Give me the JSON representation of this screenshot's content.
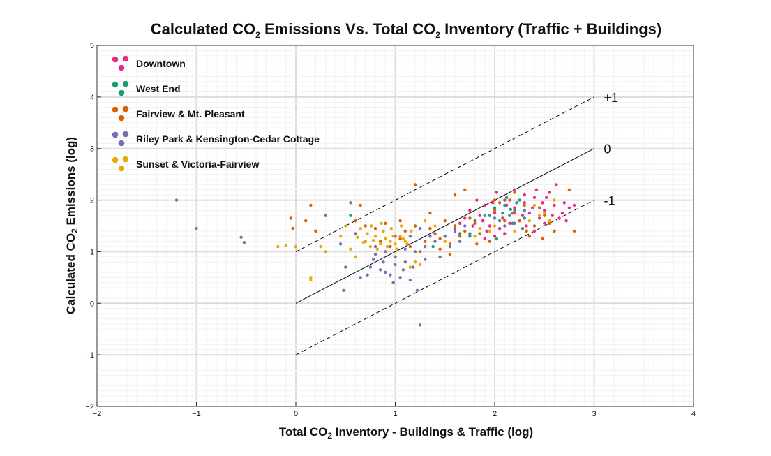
{
  "chart_data": {
    "type": "scatter",
    "title": {
      "part1": "Calculated CO",
      "sub1": "2",
      "part2": " Emissions Vs. Total CO",
      "sub2": "2",
      "part3": " Inventory (Traffic + Buildings)"
    },
    "xlabel": {
      "part1": "Total CO",
      "sub": "2",
      "part2": " Inventory - Buildings & Traffic (log)"
    },
    "ylabel": {
      "part1": "Calculated CO",
      "sub": "2",
      "part2": " Emissions (log)"
    },
    "xlim": [
      -2,
      4
    ],
    "ylim": [
      -2,
      5
    ],
    "x_ticks": [
      -2,
      -1,
      0,
      1,
      2,
      3,
      4
    ],
    "y_ticks": [
      -2,
      -1,
      0,
      1,
      2,
      3,
      4,
      5
    ],
    "x_tick_labels": [
      "−2",
      "−1",
      "0",
      "1",
      "2",
      "3",
      "4"
    ],
    "y_tick_labels": [
      "−2",
      "−1",
      "0",
      "1",
      "2",
      "3",
      "4",
      "5"
    ],
    "grid": true,
    "legend_position": "top-left",
    "reference_lines": [
      {
        "label": "+1",
        "offset": 1,
        "style": "dashed",
        "x": [
          0,
          3
        ],
        "y": [
          1,
          4
        ]
      },
      {
        "label": "0",
        "offset": 0,
        "style": "solid",
        "x": [
          0,
          3
        ],
        "y": [
          0,
          3
        ]
      },
      {
        "label": "-1",
        "offset": -1,
        "style": "dashed",
        "x": [
          0,
          3
        ],
        "y": [
          -1,
          2
        ]
      }
    ],
    "series": [
      {
        "name": "Downtown",
        "color": "#e7298a",
        "points": [
          [
            1.9,
            1.9
          ],
          [
            2.0,
            1.75
          ],
          [
            2.1,
            2.0
          ],
          [
            2.2,
            1.85
          ],
          [
            2.3,
            1.95
          ],
          [
            2.4,
            2.05
          ],
          [
            2.5,
            1.8
          ],
          [
            2.6,
            1.9
          ],
          [
            2.7,
            1.95
          ],
          [
            2.8,
            1.9
          ],
          [
            2.55,
            2.15
          ],
          [
            2.45,
            1.65
          ],
          [
            2.35,
            1.75
          ],
          [
            2.25,
            1.6
          ],
          [
            2.15,
            1.55
          ],
          [
            2.05,
            1.45
          ],
          [
            1.95,
            1.5
          ],
          [
            1.85,
            1.7
          ],
          [
            1.75,
            1.8
          ],
          [
            1.65,
            1.55
          ],
          [
            2.62,
            2.3
          ],
          [
            2.68,
            1.75
          ],
          [
            2.75,
            1.85
          ],
          [
            2.5,
            1.55
          ],
          [
            2.4,
            1.4
          ],
          [
            2.3,
            2.1
          ],
          [
            2.2,
            2.2
          ],
          [
            2.1,
            1.35
          ],
          [
            2.0,
            1.3
          ],
          [
            1.9,
            1.25
          ],
          [
            2.65,
            1.65
          ],
          [
            2.58,
            1.7
          ],
          [
            2.48,
            1.95
          ],
          [
            2.38,
            1.85
          ],
          [
            2.28,
            1.7
          ],
          [
            2.18,
            1.75
          ],
          [
            2.08,
            1.65
          ],
          [
            1.98,
            1.95
          ],
          [
            1.88,
            1.6
          ],
          [
            1.78,
            1.5
          ],
          [
            1.7,
            1.65
          ],
          [
            1.6,
            1.45
          ],
          [
            2.72,
            1.6
          ],
          [
            2.52,
            2.05
          ],
          [
            2.42,
            2.2
          ],
          [
            2.32,
            1.5
          ],
          [
            2.12,
            1.9
          ],
          [
            2.02,
            2.15
          ],
          [
            1.92,
            1.4
          ],
          [
            1.82,
            2.0
          ]
        ]
      },
      {
        "name": "West End",
        "color": "#1b9e77",
        "points": [
          [
            2.1,
            1.9
          ],
          [
            2.15,
            1.7
          ],
          [
            2.2,
            1.8
          ],
          [
            2.25,
            2.0
          ],
          [
            2.05,
            1.6
          ],
          [
            2.0,
            1.85
          ],
          [
            2.3,
            1.65
          ],
          [
            2.18,
            1.55
          ],
          [
            1.95,
            1.7
          ],
          [
            2.12,
            2.05
          ],
          [
            2.22,
            1.95
          ],
          [
            2.08,
            1.75
          ],
          [
            1.5,
            1.3
          ],
          [
            1.75,
            1.3
          ],
          [
            1.65,
            1.35
          ],
          [
            0.55,
            1.7
          ],
          [
            2.28,
            1.45
          ],
          [
            1.38,
            1.1
          ],
          [
            2.02,
            1.25
          ],
          [
            2.16,
            1.82
          ]
        ]
      },
      {
        "name": "Fairview & Mt. Pleasant",
        "color": "#d95f02",
        "points": [
          [
            1.0,
            1.3
          ],
          [
            1.1,
            1.4
          ],
          [
            1.2,
            1.5
          ],
          [
            1.3,
            1.2
          ],
          [
            1.4,
            1.35
          ],
          [
            1.5,
            1.6
          ],
          [
            1.6,
            1.5
          ],
          [
            1.7,
            1.4
          ],
          [
            1.8,
            1.55
          ],
          [
            1.9,
            1.7
          ],
          [
            2.0,
            1.8
          ],
          [
            2.1,
            1.6
          ],
          [
            2.2,
            1.75
          ],
          [
            2.3,
            1.9
          ],
          [
            2.4,
            1.5
          ],
          [
            2.5,
            1.7
          ],
          [
            2.6,
            1.4
          ],
          [
            2.8,
            1.4
          ],
          [
            2.75,
            2.2
          ],
          [
            1.2,
            2.3
          ],
          [
            0.6,
            1.6
          ],
          [
            0.7,
            1.5
          ],
          [
            0.8,
            1.45
          ],
          [
            0.9,
            1.55
          ],
          [
            1.05,
            1.25
          ],
          [
            1.15,
            1.1
          ],
          [
            1.25,
            1.0
          ],
          [
            1.35,
            1.45
          ],
          [
            1.45,
            1.25
          ],
          [
            1.55,
            1.15
          ],
          [
            1.65,
            1.3
          ],
          [
            1.75,
            1.65
          ],
          [
            1.85,
            1.35
          ],
          [
            1.95,
            1.2
          ],
          [
            2.05,
            1.95
          ],
          [
            2.15,
            2.0
          ],
          [
            2.25,
            1.6
          ],
          [
            2.35,
            1.3
          ],
          [
            2.45,
            1.85
          ],
          [
            2.55,
            1.55
          ],
          [
            0.2,
            1.4
          ],
          [
            0.1,
            1.6
          ],
          [
            0.15,
            1.9
          ],
          [
            -0.05,
            1.65
          ],
          [
            -0.03,
            1.45
          ],
          [
            1.6,
            2.1
          ],
          [
            1.7,
            2.2
          ],
          [
            2.2,
            2.15
          ],
          [
            2.0,
            2.0
          ],
          [
            0.65,
            1.9
          ],
          [
            0.85,
            1.2
          ],
          [
            0.95,
            1.1
          ],
          [
            1.45,
            1.05
          ],
          [
            1.55,
            0.95
          ],
          [
            1.82,
            1.15
          ],
          [
            2.32,
            1.4
          ],
          [
            2.48,
            1.25
          ],
          [
            1.35,
            1.75
          ],
          [
            1.05,
            1.6
          ]
        ]
      },
      {
        "name": "Riley Park & Kensington-Cedar Cottage",
        "color": "#7570b3",
        "points": [
          [
            -1.2,
            2.0
          ],
          [
            -1.0,
            1.45
          ],
          [
            -0.55,
            1.28
          ],
          [
            -0.52,
            1.18
          ],
          [
            0.6,
            1.35
          ],
          [
            0.7,
            1.2
          ],
          [
            0.8,
            1.1
          ],
          [
            0.9,
            1.0
          ],
          [
            1.0,
            0.9
          ],
          [
            1.1,
            0.8
          ],
          [
            1.0,
            0.75
          ],
          [
            0.9,
            0.6
          ],
          [
            1.05,
            0.5
          ],
          [
            1.15,
            0.45
          ],
          [
            0.95,
            0.55
          ],
          [
            0.85,
            0.65
          ],
          [
            0.75,
            0.7
          ],
          [
            0.65,
            0.5
          ],
          [
            0.5,
            0.7
          ],
          [
            0.48,
            0.25
          ],
          [
            1.25,
            -0.42
          ],
          [
            1.22,
            0.25
          ],
          [
            1.3,
            1.1
          ],
          [
            1.4,
            1.2
          ],
          [
            1.5,
            1.3
          ],
          [
            1.6,
            1.4
          ],
          [
            1.7,
            1.5
          ],
          [
            1.8,
            1.6
          ],
          [
            1.9,
            1.7
          ],
          [
            2.0,
            1.65
          ],
          [
            2.1,
            1.5
          ],
          [
            2.2,
            1.55
          ],
          [
            0.3,
            1.7
          ],
          [
            0.55,
            1.95
          ],
          [
            0.45,
            1.15
          ],
          [
            1.2,
            1.0
          ],
          [
            1.3,
            0.85
          ],
          [
            1.1,
            1.05
          ],
          [
            0.9,
            1.25
          ],
          [
            0.8,
            0.95
          ],
          [
            1.15,
            1.3
          ],
          [
            1.25,
            1.45
          ],
          [
            1.35,
            1.3
          ],
          [
            1.45,
            0.9
          ],
          [
            1.55,
            1.1
          ],
          [
            1.65,
            1.2
          ],
          [
            1.75,
            1.35
          ],
          [
            2.3,
            1.8
          ],
          [
            0.98,
            0.4
          ],
          [
            0.88,
            0.8
          ],
          [
            0.78,
            0.85
          ],
          [
            1.08,
            0.65
          ],
          [
            1.18,
            0.7
          ],
          [
            0.72,
            0.55
          ]
        ]
      },
      {
        "name": "Sunset & Victoria-Fairview",
        "color": "#e6ab02",
        "points": [
          [
            0.7,
            1.2
          ],
          [
            0.75,
            1.1
          ],
          [
            0.8,
            1.3
          ],
          [
            0.85,
            1.15
          ],
          [
            0.9,
            1.25
          ],
          [
            0.95,
            1.2
          ],
          [
            1.0,
            1.15
          ],
          [
            1.05,
            1.3
          ],
          [
            1.1,
            1.2
          ],
          [
            0.72,
            1.35
          ],
          [
            0.82,
            1.05
          ],
          [
            0.88,
            1.4
          ],
          [
            0.92,
            1.1
          ],
          [
            0.98,
            1.3
          ],
          [
            1.02,
            1.05
          ],
          [
            1.08,
            1.25
          ],
          [
            1.12,
            1.15
          ],
          [
            0.78,
            1.22
          ],
          [
            0.68,
            1.18
          ],
          [
            0.62,
            1.28
          ],
          [
            1.2,
            0.8
          ],
          [
            1.15,
            0.7
          ],
          [
            1.25,
            0.75
          ],
          [
            0.15,
            0.5
          ],
          [
            0.15,
            0.45
          ],
          [
            0.3,
            1.0
          ],
          [
            0.25,
            1.1
          ],
          [
            -0.18,
            1.1
          ],
          [
            -0.1,
            1.12
          ],
          [
            0.0,
            1.1
          ],
          [
            2.5,
            1.75
          ],
          [
            2.55,
            1.6
          ],
          [
            2.6,
            2.0
          ],
          [
            2.4,
            1.9
          ],
          [
            2.45,
            1.7
          ],
          [
            2.35,
            1.6
          ],
          [
            2.0,
            1.5
          ],
          [
            1.95,
            1.4
          ],
          [
            1.85,
            1.45
          ],
          [
            1.5,
            1.2
          ],
          [
            0.55,
            1.05
          ],
          [
            0.45,
            1.3
          ],
          [
            0.5,
            1.5
          ],
          [
            1.3,
            1.6
          ],
          [
            1.4,
            1.5
          ],
          [
            1.8,
            1.3
          ],
          [
            2.2,
            1.4
          ],
          [
            0.6,
            0.9
          ],
          [
            0.65,
            1.45
          ],
          [
            0.76,
            1.5
          ],
          [
            0.86,
            1.55
          ],
          [
            0.96,
            1.45
          ],
          [
            1.06,
            1.5
          ],
          [
            1.16,
            1.4
          ]
        ]
      }
    ]
  }
}
